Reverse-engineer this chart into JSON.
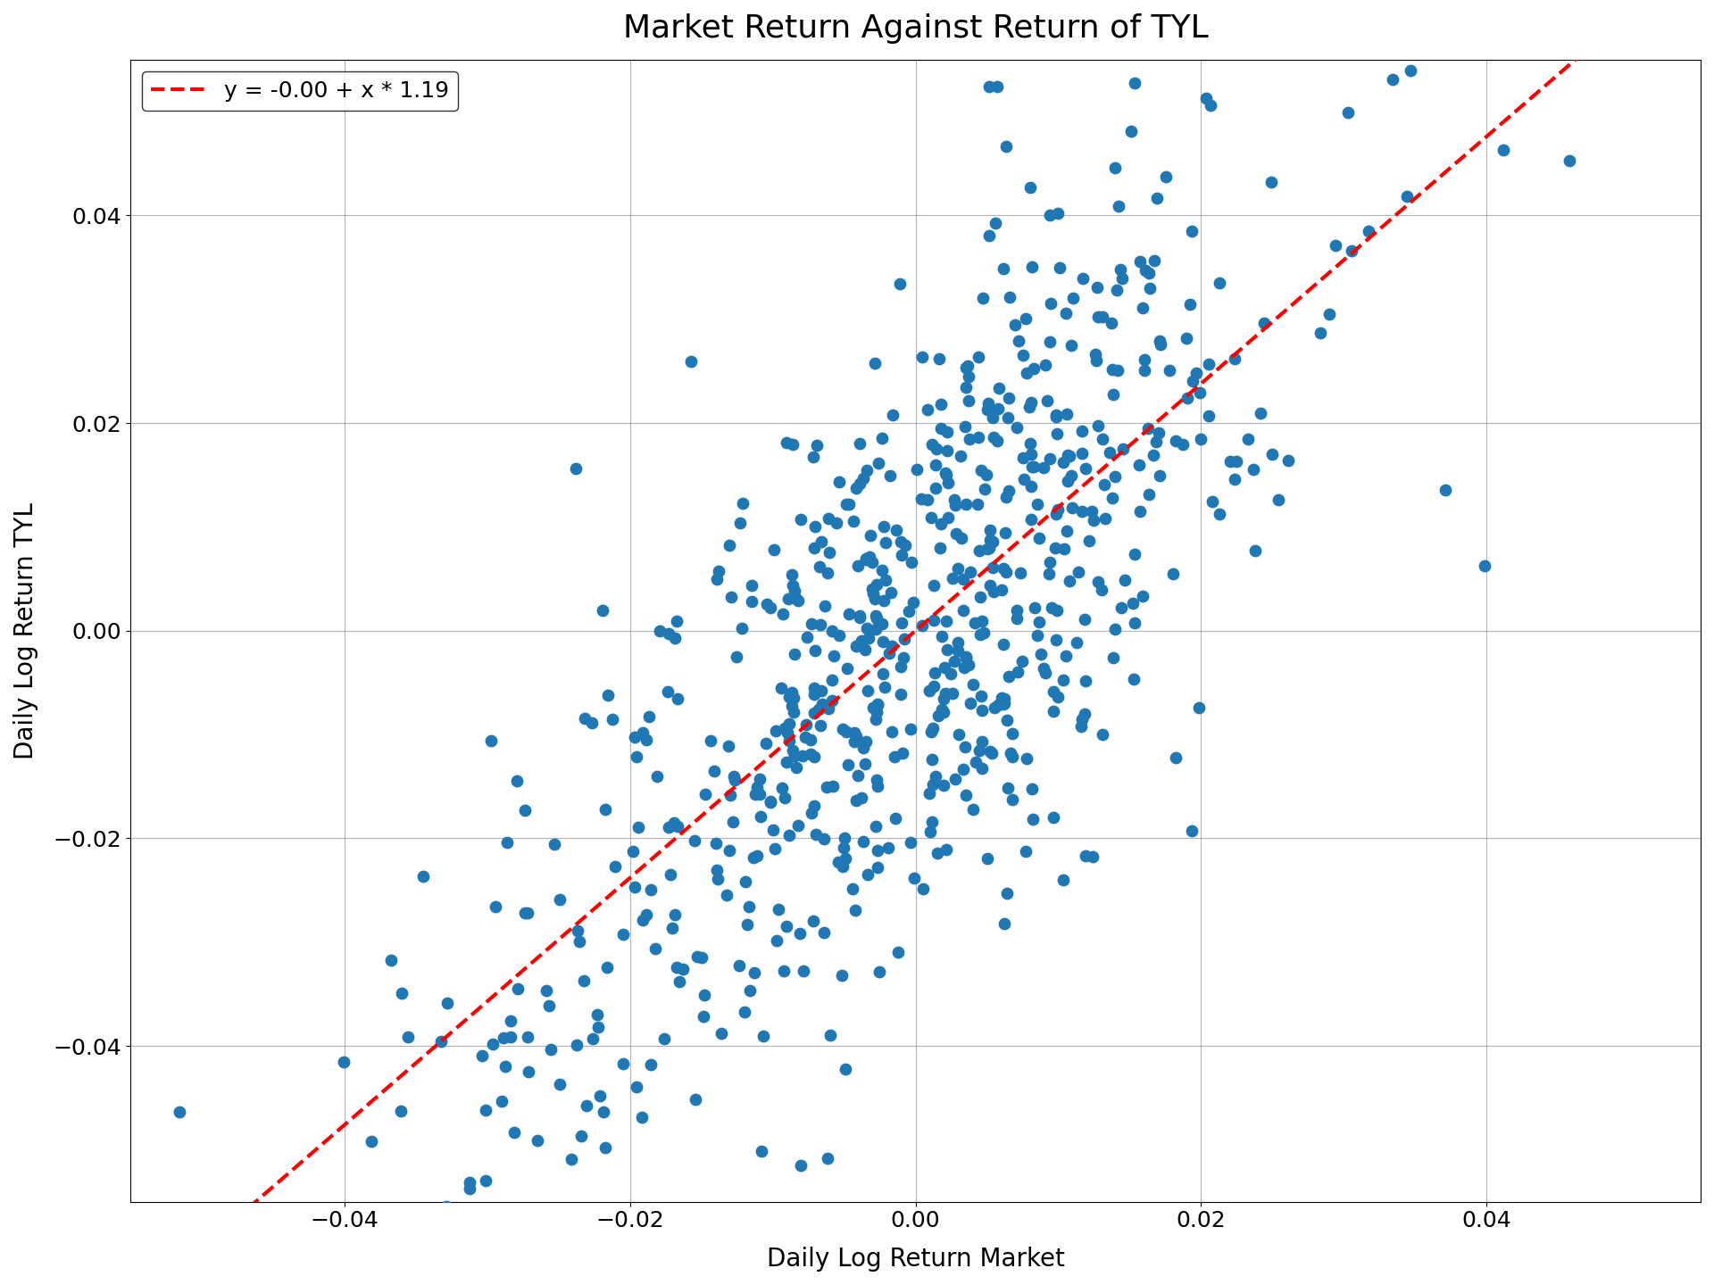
{
  "title": "Market Return Against Return of TYL",
  "xlabel": "Daily Log Return Market",
  "ylabel": "Daily Log Return TYL",
  "legend_label": "y = -0.00 + x * 1.19",
  "intercept": 0.0,
  "slope": 1.19,
  "dot_color": "#1f77b4",
  "line_color": "#ff0000",
  "xlim": [
    -0.055,
    0.055
  ],
  "ylim": [
    -0.055,
    0.055
  ],
  "xticks": [
    -0.04,
    -0.02,
    0.0,
    0.02,
    0.04
  ],
  "yticks": [
    -0.04,
    -0.02,
    0.0,
    0.02,
    0.04
  ],
  "n_points": 700,
  "seed": 12,
  "dot_size": 80,
  "dot_alpha": 1.0,
  "title_fontsize": 26,
  "label_fontsize": 20,
  "tick_fontsize": 18,
  "legend_fontsize": 18,
  "figwidth": 19.2,
  "figheight": 14.4,
  "dpi": 100
}
